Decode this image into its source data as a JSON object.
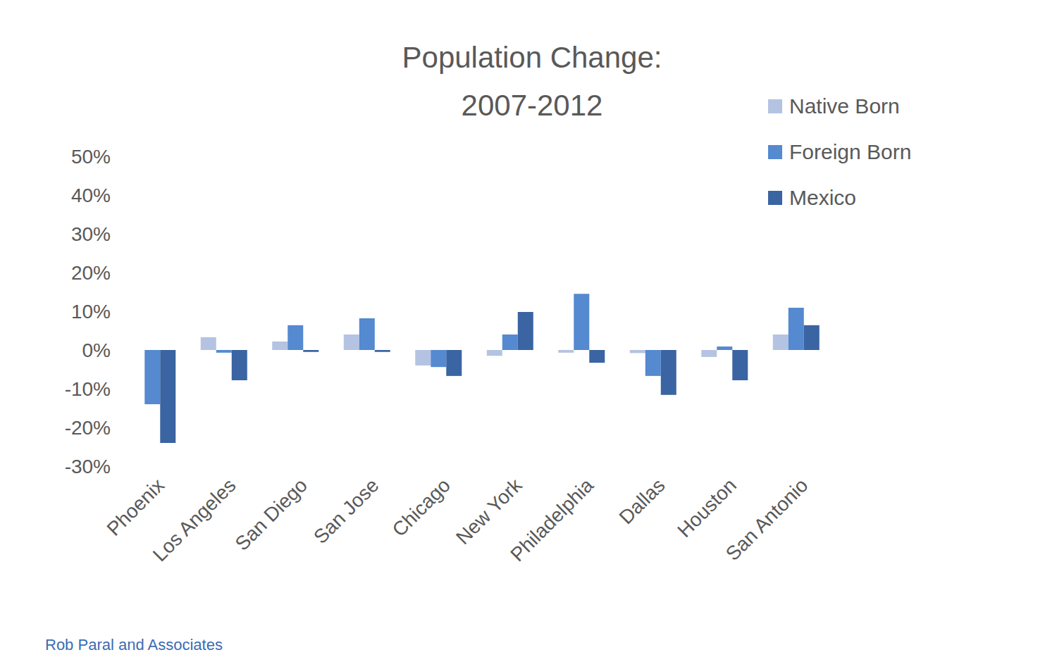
{
  "chart_data": {
    "type": "bar",
    "title": "Population Change:\n2007-2012",
    "source": "Rob Paral and Associates",
    "categories": [
      "Phoenix",
      "Los Angeles",
      "San Diego",
      "San Jose",
      "Chicago",
      "New York",
      "Philadelphia",
      "Dallas",
      "Houston",
      "San Antonio"
    ],
    "series": [
      {
        "name": "Native Born",
        "color": "#b4c3e1",
        "values": [
          0,
          3.3,
          2.2,
          4,
          -4,
          -1.5,
          -0.7,
          -0.8,
          -1.8,
          4
        ]
      },
      {
        "name": "Foreign Born",
        "color": "#5589d0",
        "values": [
          -14,
          -0.7,
          6.4,
          8.2,
          -4.4,
          4,
          14.5,
          -6.7,
          0.9,
          10.9
        ]
      },
      {
        "name": "Mexico",
        "color": "#3a64a2",
        "values": [
          -24,
          -7.8,
          -0.5,
          -0.5,
          -6.7,
          9.8,
          -3.3,
          -11.6,
          -7.8,
          6.4
        ]
      }
    ],
    "ylim": [
      -30,
      50
    ],
    "yticks": [
      {
        "value": -30,
        "label": "-30%"
      },
      {
        "value": -20,
        "label": "-20%"
      },
      {
        "value": -10,
        "label": "-10%"
      },
      {
        "value": 0,
        "label": "0%"
      },
      {
        "value": 10,
        "label": "10%"
      },
      {
        "value": 20,
        "label": "20%"
      },
      {
        "value": 30,
        "label": "30%"
      },
      {
        "value": 40,
        "label": "40%"
      },
      {
        "value": 50,
        "label": "50%"
      }
    ],
    "grid": false,
    "legend": "upper right"
  }
}
